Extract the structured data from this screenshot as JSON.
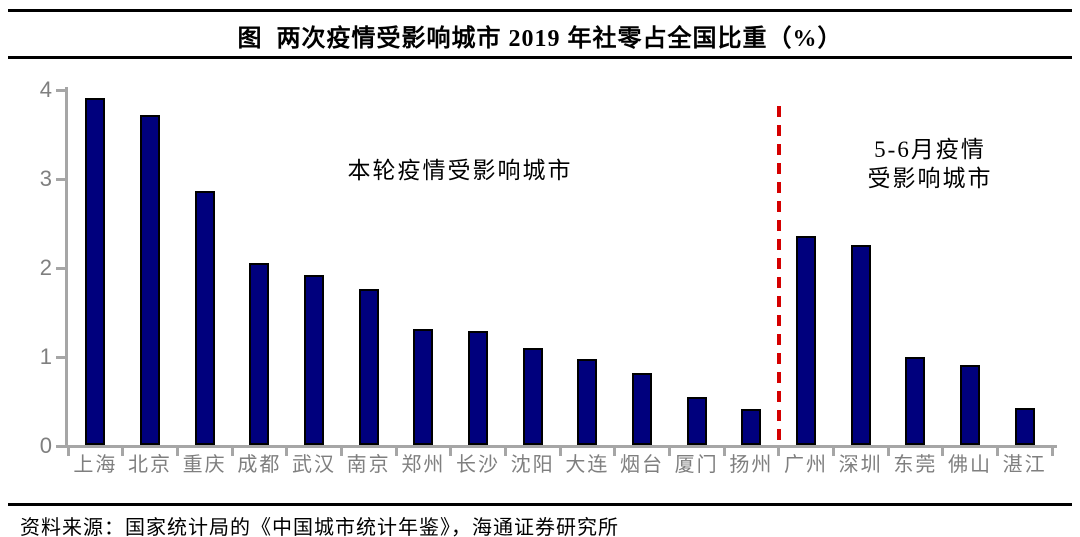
{
  "title": "图  两次疫情受影响城市 2019 年社零占全国比重（%）",
  "annotations": {
    "left": "本轮疫情受影响城市",
    "right_line1": "5-6月疫情",
    "right_line2": "受影响城市"
  },
  "source": "资料来源：国家统计局的《中国城市统计年鉴》，海通证券研究所",
  "colors": {
    "bar_fill": "#00007d",
    "bar_border": "#000000",
    "axis": "#a6a6a6",
    "tick_label": "#7f7f7f",
    "divider_red": "#d40000"
  },
  "chart_data": {
    "type": "bar",
    "title": "图 两次疫情受影响城市 2019 年社零占全国比重（%）",
    "categories": [
      "上海",
      "北京",
      "重庆",
      "成都",
      "武汉",
      "南京",
      "郑州",
      "长沙",
      "沈阳",
      "大连",
      "烟台",
      "厦门",
      "扬州",
      "广州",
      "深圳",
      "东莞",
      "佛山",
      "湛江"
    ],
    "values": [
      3.9,
      3.71,
      2.86,
      2.04,
      1.91,
      1.75,
      1.3,
      1.28,
      1.09,
      0.97,
      0.81,
      0.54,
      0.4,
      2.35,
      2.25,
      0.99,
      0.9,
      0.42
    ],
    "xlabel": "",
    "ylabel": "",
    "ylim": [
      0,
      4
    ],
    "yticks": [
      0,
      1,
      2,
      3,
      4
    ],
    "grid": false,
    "legend": false,
    "divider_after_index": 12,
    "group_labels": {
      "left_group": "本轮疫情受影响城市",
      "right_group": "5-6月疫情 受影响城市"
    }
  }
}
